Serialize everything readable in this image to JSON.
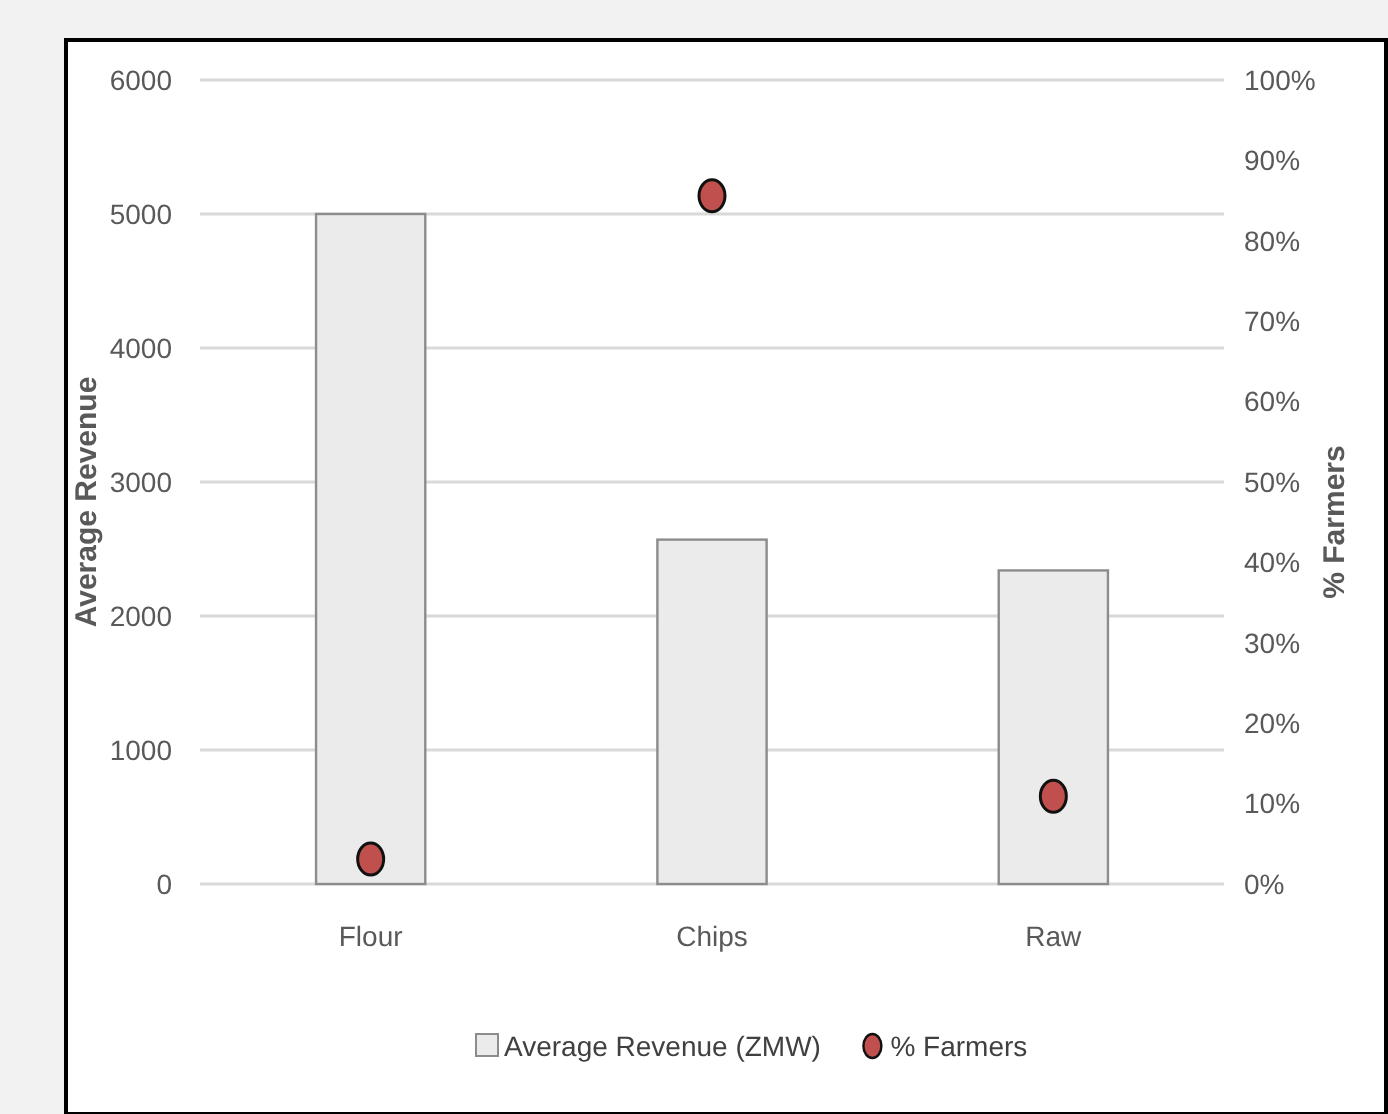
{
  "chart_data": {
    "type": "bar",
    "categories": [
      "Flour",
      "Chips",
      "Raw"
    ],
    "series": [
      {
        "name": "Average Revenue (ZMW)",
        "color": "#ebebeb",
        "values": [
          5000,
          2570,
          2340
        ]
      },
      {
        "name": "% Farmers",
        "type": "scatter",
        "axis": "y2",
        "color": "#c0504d",
        "values": [
          3.1,
          85.6,
          10.9
        ]
      }
    ],
    "ylabel": "Average Revenue",
    "y2label": "% Farmers",
    "ylim": [
      0,
      6000
    ],
    "yticks": [
      0,
      1000,
      2000,
      3000,
      4000,
      5000,
      6000
    ],
    "y2lim": [
      0,
      100
    ],
    "y2ticks": [
      {
        "value": 0,
        "label": "0%"
      },
      {
        "value": 10,
        "label": "10%"
      },
      {
        "value": 20,
        "label": "20%"
      },
      {
        "value": 30,
        "label": "30%"
      },
      {
        "value": 40,
        "label": "40%"
      },
      {
        "value": 50,
        "label": "50%"
      },
      {
        "value": 60,
        "label": "60%"
      },
      {
        "value": 70,
        "label": "70%"
      },
      {
        "value": 80,
        "label": "80%"
      },
      {
        "value": 90,
        "label": "90%"
      },
      {
        "value": 100,
        "label": "100%"
      }
    ],
    "grid": "y",
    "legend": "bottom",
    "marker": "circle"
  }
}
